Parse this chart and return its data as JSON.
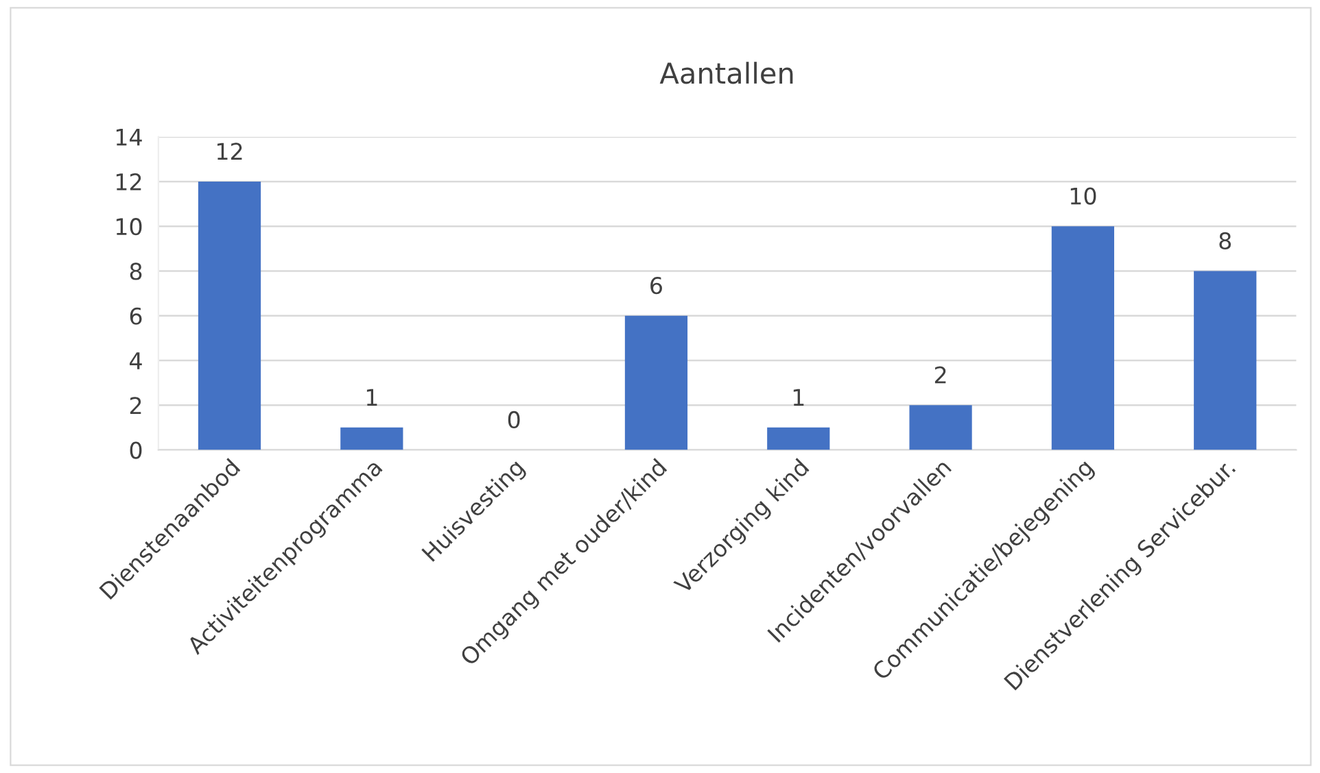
{
  "chart_data": {
    "type": "bar",
    "title": "Aantallen",
    "categories": [
      "Dienstenaanbod",
      "Activiteitenprogramma",
      "Huisvesting",
      "Omgang met ouder/kind",
      "Verzorging kind",
      "Incidenten/voorvallen",
      "Communicatie/bejegening",
      "Dienstverlening Servicebur."
    ],
    "values": [
      12,
      1,
      0,
      6,
      1,
      2,
      10,
      8
    ],
    "color": "#4472c4",
    "ylim": [
      0,
      14
    ],
    "yticks": [
      0,
      2,
      4,
      6,
      8,
      10,
      12,
      14
    ],
    "grid": "y",
    "data_labels": true
  }
}
